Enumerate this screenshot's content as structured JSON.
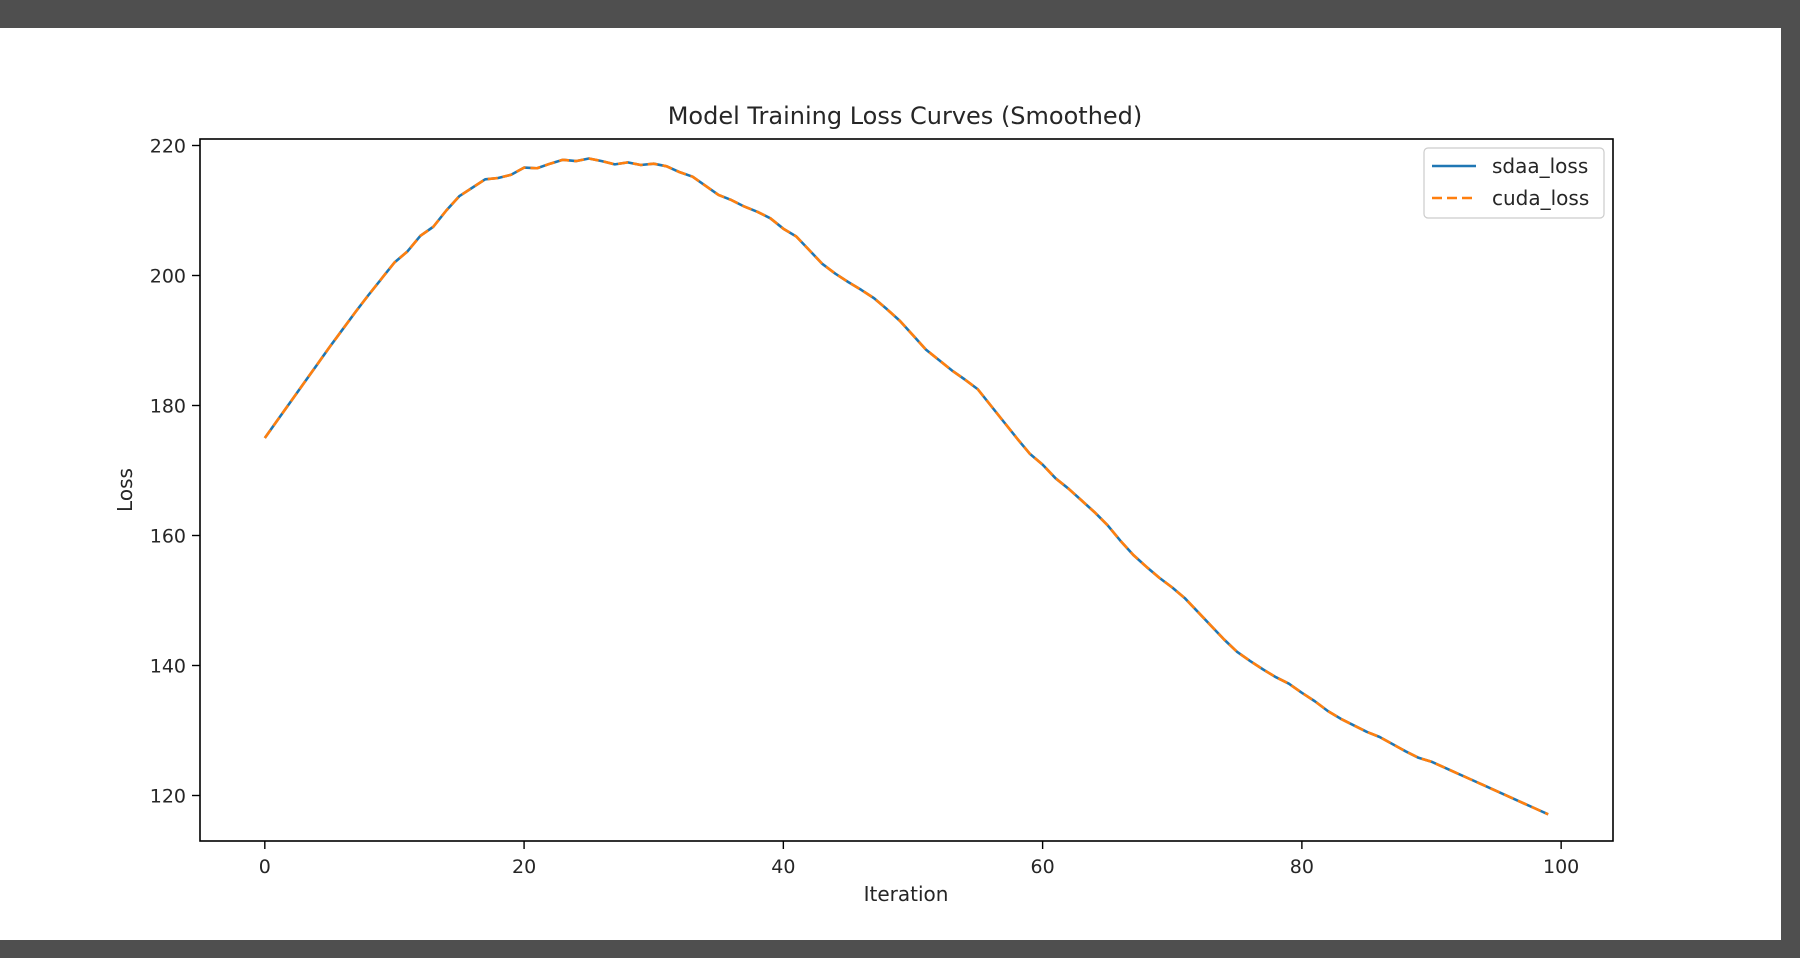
{
  "chart_data": {
    "type": "line",
    "title": "Model Training Loss Curves (Smoothed)",
    "xlabel": "Iteration",
    "ylabel": "Loss",
    "xlim": [
      -5,
      104
    ],
    "ylim": [
      113,
      221
    ],
    "xticks": [
      0,
      20,
      40,
      60,
      80,
      100
    ],
    "yticks": [
      120,
      140,
      160,
      180,
      200,
      220
    ],
    "grid": false,
    "legend": "top-right",
    "x": [
      0,
      1,
      2,
      3,
      4,
      5,
      6,
      7,
      8,
      9,
      10,
      11,
      12,
      13,
      14,
      15,
      16,
      17,
      18,
      19,
      20,
      21,
      22,
      23,
      24,
      25,
      26,
      27,
      28,
      29,
      30,
      31,
      32,
      33,
      34,
      35,
      36,
      37,
      38,
      39,
      40,
      41,
      42,
      43,
      44,
      45,
      46,
      47,
      48,
      49,
      50,
      51,
      52,
      53,
      54,
      55,
      56,
      57,
      58,
      59,
      60,
      61,
      62,
      63,
      64,
      65,
      66,
      67,
      68,
      69,
      70,
      71,
      72,
      73,
      74,
      75,
      76,
      77,
      78,
      79,
      80,
      81,
      82,
      83,
      84,
      85,
      86,
      87,
      88,
      89,
      90,
      91,
      92,
      93,
      94,
      95,
      96,
      97,
      98,
      99
    ],
    "series": [
      {
        "name": "sdaa_loss",
        "color": "#1f77b4",
        "style": "solid",
        "values": [
          175.0,
          177.8,
          180.6,
          183.4,
          186.2,
          189.0,
          191.7,
          194.4,
          197.0,
          199.5,
          202.0,
          203.7,
          206.1,
          207.5,
          210.0,
          212.2,
          213.5,
          214.8,
          215.0,
          215.5,
          216.6,
          216.5,
          217.2,
          217.8,
          217.6,
          218.0,
          217.6,
          217.1,
          217.4,
          217.0,
          217.2,
          216.8,
          215.9,
          215.2,
          213.8,
          212.4,
          211.6,
          210.6,
          209.8,
          208.8,
          207.2,
          206.0,
          203.9,
          201.8,
          200.3,
          199.0,
          197.8,
          196.5,
          194.8,
          193.0,
          190.8,
          188.6,
          187.0,
          185.4,
          184.0,
          182.5,
          180.0,
          177.5,
          175.0,
          172.6,
          170.9,
          168.8,
          167.2,
          165.4,
          163.6,
          161.6,
          159.2,
          157.0,
          155.2,
          153.5,
          152.0,
          150.3,
          148.2,
          146.1,
          144.0,
          142.1,
          140.7,
          139.4,
          138.2,
          137.2,
          135.8,
          134.5,
          133.0,
          131.8,
          130.8,
          129.8,
          129.0,
          127.9,
          126.8,
          125.8,
          125.2,
          124.3,
          123.4,
          122.5,
          121.6,
          120.7,
          119.8,
          118.9,
          118.0,
          117.1
        ]
      },
      {
        "name": "cuda_loss",
        "color": "#ff7f0e",
        "style": "dashed",
        "values": [
          175.0,
          177.8,
          180.6,
          183.4,
          186.2,
          189.0,
          191.7,
          194.4,
          197.0,
          199.5,
          202.0,
          203.7,
          206.1,
          207.5,
          210.0,
          212.2,
          213.5,
          214.8,
          215.0,
          215.5,
          216.6,
          216.5,
          217.2,
          217.8,
          217.6,
          218.0,
          217.6,
          217.1,
          217.4,
          217.0,
          217.2,
          216.8,
          215.9,
          215.2,
          213.8,
          212.4,
          211.6,
          210.6,
          209.8,
          208.8,
          207.2,
          206.0,
          203.9,
          201.8,
          200.3,
          199.0,
          197.8,
          196.5,
          194.8,
          193.0,
          190.8,
          188.6,
          187.0,
          185.4,
          184.0,
          182.5,
          180.0,
          177.5,
          175.0,
          172.6,
          170.9,
          168.8,
          167.2,
          165.4,
          163.6,
          161.6,
          159.2,
          157.0,
          155.2,
          153.5,
          152.0,
          150.3,
          148.2,
          146.1,
          144.0,
          142.1,
          140.7,
          139.4,
          138.2,
          137.2,
          135.8,
          134.5,
          133.0,
          131.8,
          130.8,
          129.8,
          129.0,
          127.9,
          126.8,
          125.8,
          125.2,
          124.3,
          123.4,
          122.5,
          121.6,
          120.7,
          119.8,
          118.9,
          118.0,
          117.1
        ]
      }
    ]
  }
}
